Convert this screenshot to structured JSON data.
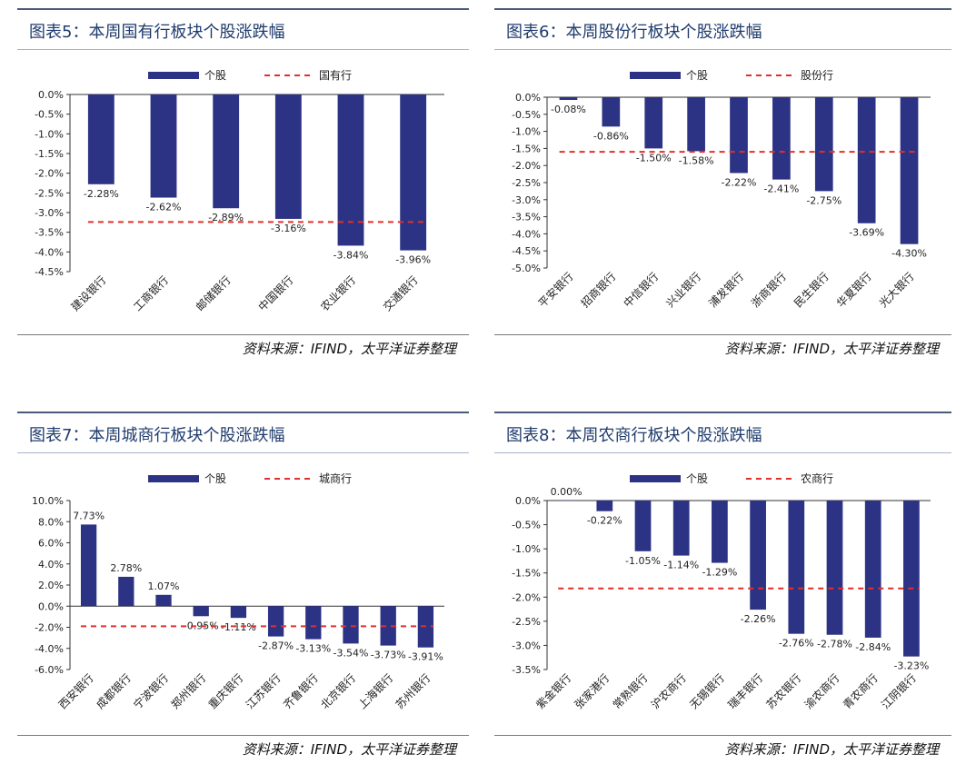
{
  "colors": {
    "bar": "#2d3384",
    "ref": "#e0302b",
    "title": "#1f3c6e"
  },
  "panels": [
    {
      "title": "图表5：本周国有行板块个股涨跌幅",
      "source": "资料来源：IFIND，太平洋证券整理"
    },
    {
      "title": "图表6：本周股份行板块个股涨跌幅",
      "source": "资料来源：IFIND，太平洋证券整理"
    },
    {
      "title": "图表7：本周城商行板块个股涨跌幅",
      "source": "资料来源：IFIND，太平洋证券整理"
    },
    {
      "title": "图表8：本周农商行板块个股涨跌幅",
      "source": "资料来源：IFIND，太平洋证券整理"
    }
  ],
  "chart_data": [
    {
      "type": "bar",
      "categories": [
        "建设银行",
        "工商银行",
        "邮储银行",
        "中国银行",
        "农业银行",
        "交通银行"
      ],
      "series": [
        {
          "name": "个股",
          "values": [
            -2.28,
            -2.62,
            -2.89,
            -3.16,
            -3.84,
            -3.96
          ]
        },
        {
          "name": "国有行",
          "values": [
            -3.24,
            -3.24,
            -3.24,
            -3.24,
            -3.24,
            -3.24
          ]
        }
      ],
      "value_labels": [
        "-2.28%",
        "-2.62%",
        "-2.89%",
        "-3.16%",
        "-3.84%",
        "-3.96%"
      ],
      "yticks": [
        "0.0%",
        "-0.5%",
        "-1.0%",
        "-1.5%",
        "-2.0%",
        "-2.5%",
        "-3.0%",
        "-3.5%",
        "-4.0%",
        "-4.5%"
      ],
      "ylim": [
        -4.5,
        0
      ],
      "ystep": 0.5,
      "legend": "top",
      "grid": false
    },
    {
      "type": "bar",
      "categories": [
        "平安银行",
        "招商银行",
        "中信银行",
        "兴业银行",
        "浦发银行",
        "浙商银行",
        "民生银行",
        "华夏银行",
        "光大银行"
      ],
      "series": [
        {
          "name": "个股",
          "values": [
            -0.08,
            -0.86,
            -1.5,
            -1.58,
            -2.22,
            -2.41,
            -2.75,
            -3.69,
            -4.3
          ]
        },
        {
          "name": "股份行",
          "values": [
            -1.6,
            -1.6,
            -1.6,
            -1.6,
            -1.6,
            -1.6,
            -1.6,
            -1.6,
            -1.6
          ]
        }
      ],
      "value_labels": [
        "-0.08%",
        "-0.86%",
        "-1.50%",
        "-1.58%",
        "-2.22%",
        "-2.41%",
        "-2.75%",
        "-3.69%",
        "-4.30%"
      ],
      "yticks": [
        "0.0%",
        "-0.5%",
        "-1.0%",
        "-1.5%",
        "-2.0%",
        "-2.5%",
        "-3.0%",
        "-3.5%",
        "-4.0%",
        "-4.5%",
        "-5.0%"
      ],
      "ylim": [
        -5.0,
        0
      ],
      "ystep": 0.5,
      "legend": "top",
      "grid": false
    },
    {
      "type": "bar",
      "categories": [
        "西安银行",
        "成都银行",
        "宁波银行",
        "郑州银行",
        "重庆银行",
        "江苏银行",
        "齐鲁银行",
        "北京银行",
        "上海银行",
        "苏州银行"
      ],
      "series": [
        {
          "name": "个股",
          "values": [
            7.73,
            2.78,
            1.07,
            -0.95,
            -1.11,
            -2.87,
            -3.13,
            -3.54,
            -3.73,
            -3.91
          ]
        },
        {
          "name": "城商行",
          "values": [
            -1.9,
            -1.9,
            -1.9,
            -1.9,
            -1.9,
            -1.9,
            -1.9,
            -1.9,
            -1.9,
            -1.9
          ]
        }
      ],
      "value_labels": [
        "7.73%",
        "2.78%",
        "1.07%",
        "-0.95%",
        "-1.11%",
        "-2.87%",
        "-3.13%",
        "-3.54%",
        "-3.73%",
        "-3.91%"
      ],
      "yticks": [
        "10.0%",
        "8.0%",
        "6.0%",
        "4.0%",
        "2.0%",
        "0.0%",
        "-2.0%",
        "-4.0%",
        "-6.0%"
      ],
      "ylim": [
        -6.0,
        10.0
      ],
      "ystep": 2.0,
      "legend": "top",
      "grid": false
    },
    {
      "type": "bar",
      "categories": [
        "紫金银行",
        "张家港行",
        "常熟银行",
        "沪农商行",
        "无锡银行",
        "瑞丰银行",
        "苏农银行",
        "渝农商行",
        "青农商行",
        "江阴银行"
      ],
      "series": [
        {
          "name": "个股",
          "values": [
            0.0,
            -0.22,
            -1.05,
            -1.14,
            -1.29,
            -2.26,
            -2.76,
            -2.78,
            -2.84,
            -3.23
          ]
        },
        {
          "name": "农商行",
          "values": [
            -1.82,
            -1.82,
            -1.82,
            -1.82,
            -1.82,
            -1.82,
            -1.82,
            -1.82,
            -1.82,
            -1.82
          ]
        }
      ],
      "value_labels": [
        "0.00%",
        "-0.22%",
        "-1.05%",
        "-1.14%",
        "-1.29%",
        "-2.26%",
        "-2.76%",
        "-2.78%",
        "-2.84%",
        "-3.23%"
      ],
      "yticks": [
        "0.0%",
        "-0.5%",
        "-1.0%",
        "-1.5%",
        "-2.0%",
        "-2.5%",
        "-3.0%",
        "-3.5%"
      ],
      "ylim": [
        -3.5,
        0
      ],
      "ystep": 0.5,
      "legend": "top",
      "grid": false
    }
  ]
}
